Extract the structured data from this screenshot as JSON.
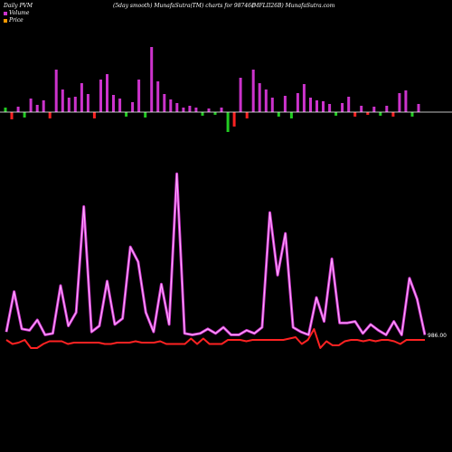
{
  "header": {
    "left": "Daily PVM",
    "center": "(5day smooth) MunafaSutra(TM) charts for 987461",
    "right": "(MFLII26B) MunafaSutra.com"
  },
  "legend": {
    "volume_label": "Volume",
    "price_label": "Price"
  },
  "last_price_label": "986.00",
  "colors": {
    "background": "#000000",
    "baseline": "#ffffff",
    "vol_up": "#cc33cc",
    "vol_down": "#ff2222",
    "vol_green": "#22cc22",
    "line_pvm": "#cc33cc",
    "line_pvm_highlight": "#ffaaff",
    "line_price": "#ff2222",
    "legend_volume": "#cc33cc",
    "legend_price": "#ff9900"
  },
  "chart_data": {
    "type": "bar+line",
    "volume_bars": [
      {
        "v": 5,
        "c": "green"
      },
      {
        "v": -8,
        "c": "red"
      },
      {
        "v": 6,
        "c": "pink"
      },
      {
        "v": -6,
        "c": "green"
      },
      {
        "v": 15,
        "c": "pink"
      },
      {
        "v": 8,
        "c": "pink"
      },
      {
        "v": 13,
        "c": "pink"
      },
      {
        "v": -7,
        "c": "red"
      },
      {
        "v": 47,
        "c": "pink"
      },
      {
        "v": 25,
        "c": "pink"
      },
      {
        "v": 16,
        "c": "pink"
      },
      {
        "v": 17,
        "c": "pink"
      },
      {
        "v": 32,
        "c": "pink"
      },
      {
        "v": 20,
        "c": "pink"
      },
      {
        "v": -7,
        "c": "red"
      },
      {
        "v": 36,
        "c": "pink"
      },
      {
        "v": 42,
        "c": "pink"
      },
      {
        "v": 19,
        "c": "pink"
      },
      {
        "v": 15,
        "c": "pink"
      },
      {
        "v": -5,
        "c": "green"
      },
      {
        "v": 11,
        "c": "pink"
      },
      {
        "v": 36,
        "c": "pink"
      },
      {
        "v": -6,
        "c": "green"
      },
      {
        "v": 72,
        "c": "pink"
      },
      {
        "v": 34,
        "c": "pink"
      },
      {
        "v": 20,
        "c": "pink"
      },
      {
        "v": 14,
        "c": "pink"
      },
      {
        "v": 10,
        "c": "pink"
      },
      {
        "v": 5,
        "c": "pink"
      },
      {
        "v": 7,
        "c": "pink"
      },
      {
        "v": 5,
        "c": "pink"
      },
      {
        "v": -4,
        "c": "green"
      },
      {
        "v": 4,
        "c": "pink"
      },
      {
        "v": -3,
        "c": "green"
      },
      {
        "v": 5,
        "c": "pink"
      },
      {
        "v": -22,
        "c": "green"
      },
      {
        "v": -16,
        "c": "red"
      },
      {
        "v": 38,
        "c": "pink"
      },
      {
        "v": -7,
        "c": "red"
      },
      {
        "v": 47,
        "c": "pink"
      },
      {
        "v": 32,
        "c": "pink"
      },
      {
        "v": 25,
        "c": "pink"
      },
      {
        "v": 16,
        "c": "pink"
      },
      {
        "v": -5,
        "c": "green"
      },
      {
        "v": 18,
        "c": "pink"
      },
      {
        "v": -7,
        "c": "green"
      },
      {
        "v": 21,
        "c": "pink"
      },
      {
        "v": 31,
        "c": "pink"
      },
      {
        "v": 16,
        "c": "pink"
      },
      {
        "v": 13,
        "c": "pink"
      },
      {
        "v": 12,
        "c": "pink"
      },
      {
        "v": 9,
        "c": "pink"
      },
      {
        "v": -4,
        "c": "green"
      },
      {
        "v": 10,
        "c": "pink"
      },
      {
        "v": 17,
        "c": "pink"
      },
      {
        "v": -5,
        "c": "red"
      },
      {
        "v": 7,
        "c": "pink"
      },
      {
        "v": -3,
        "c": "red"
      },
      {
        "v": 6,
        "c": "pink"
      },
      {
        "v": -4,
        "c": "green"
      },
      {
        "v": 7,
        "c": "pink"
      },
      {
        "v": -5,
        "c": "red"
      },
      {
        "v": 21,
        "c": "pink"
      },
      {
        "v": 24,
        "c": "pink"
      },
      {
        "v": -5,
        "c": "green"
      },
      {
        "v": 9,
        "c": "pink"
      }
    ],
    "pvm_line": [
      6,
      33,
      8,
      7,
      14,
      4,
      5,
      37,
      10,
      19,
      90,
      6,
      10,
      40,
      11,
      15,
      63,
      53,
      19,
      6,
      38,
      11,
      112,
      5,
      4,
      5,
      8,
      5,
      9,
      4,
      4,
      7,
      5,
      9,
      86,
      44,
      72,
      9,
      6,
      4,
      29,
      13,
      55,
      12,
      12,
      13,
      5,
      11,
      7,
      4,
      13,
      4,
      42,
      28,
      4
    ],
    "price_line": [
      2,
      -1,
      0,
      2,
      -4,
      -4,
      -1,
      1,
      1,
      1,
      -1,
      0,
      0,
      0,
      0,
      0,
      -1,
      -1,
      0,
      0,
      0,
      1,
      0,
      0,
      0,
      1,
      -1,
      -1,
      -1,
      -1,
      3,
      -1,
      3,
      -1,
      -1,
      -1,
      2,
      2,
      2,
      1,
      2,
      2,
      2,
      2,
      2,
      2,
      3,
      4,
      -1,
      2,
      10,
      -4,
      1,
      -2,
      -2,
      1,
      2,
      2,
      1,
      2,
      1,
      2,
      2,
      1,
      -1,
      2,
      2,
      2,
      2
    ],
    "last_price": 986.0
  }
}
